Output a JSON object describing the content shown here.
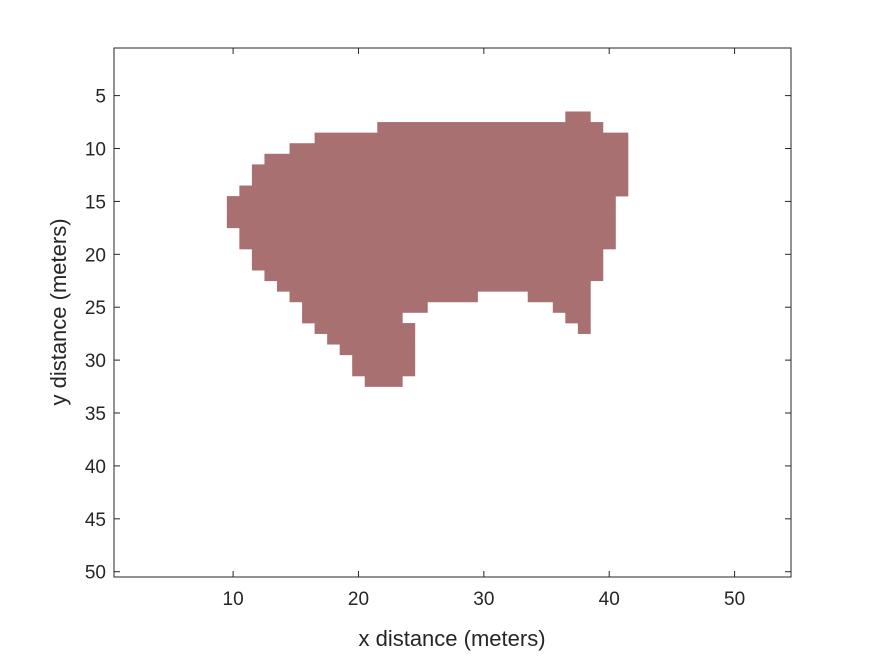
{
  "chart_data": {
    "type": "heatmap",
    "xlabel": "x distance (meters)",
    "ylabel": "y distance (meters)",
    "xlim": [
      0.5,
      54.5
    ],
    "ylim": [
      0.5,
      50.5
    ],
    "y_direction": "reversed",
    "xticks": [
      10,
      20,
      30,
      40,
      50
    ],
    "yticks": [
      5,
      10,
      15,
      20,
      25,
      30,
      35,
      40,
      45,
      50
    ],
    "grid": false,
    "legend": "none",
    "fill_color": "#a87070",
    "background_color": "#ffffff",
    "region_rows": [
      {
        "y": 7,
        "x_ranges": [
          [
            37,
            38
          ]
        ]
      },
      {
        "y": 8,
        "x_ranges": [
          [
            22,
            39
          ]
        ]
      },
      {
        "y": 9,
        "x_ranges": [
          [
            17,
            41
          ]
        ]
      },
      {
        "y": 10,
        "x_ranges": [
          [
            15,
            41
          ]
        ]
      },
      {
        "y": 11,
        "x_ranges": [
          [
            13,
            41
          ]
        ]
      },
      {
        "y": 12,
        "x_ranges": [
          [
            12,
            41
          ]
        ]
      },
      {
        "y": 13,
        "x_ranges": [
          [
            12,
            41
          ]
        ]
      },
      {
        "y": 14,
        "x_ranges": [
          [
            11,
            41
          ]
        ]
      },
      {
        "y": 15,
        "x_ranges": [
          [
            10,
            40
          ]
        ]
      },
      {
        "y": 16,
        "x_ranges": [
          [
            10,
            40
          ]
        ]
      },
      {
        "y": 17,
        "x_ranges": [
          [
            10,
            40
          ]
        ]
      },
      {
        "y": 18,
        "x_ranges": [
          [
            11,
            40
          ]
        ]
      },
      {
        "y": 19,
        "x_ranges": [
          [
            11,
            40
          ]
        ]
      },
      {
        "y": 20,
        "x_ranges": [
          [
            12,
            39
          ]
        ]
      },
      {
        "y": 21,
        "x_ranges": [
          [
            12,
            39
          ]
        ]
      },
      {
        "y": 22,
        "x_ranges": [
          [
            13,
            39
          ]
        ]
      },
      {
        "y": 23,
        "x_ranges": [
          [
            14,
            38
          ]
        ]
      },
      {
        "y": 24,
        "x_ranges": [
          [
            15,
            29
          ],
          [
            34,
            38
          ]
        ]
      },
      {
        "y": 25,
        "x_ranges": [
          [
            16,
            25
          ],
          [
            36,
            38
          ]
        ]
      },
      {
        "y": 26,
        "x_ranges": [
          [
            16,
            23
          ],
          [
            37,
            38
          ]
        ]
      },
      {
        "y": 27,
        "x_ranges": [
          [
            17,
            24
          ],
          [
            38,
            38
          ]
        ]
      },
      {
        "y": 28,
        "x_ranges": [
          [
            18,
            24
          ]
        ]
      },
      {
        "y": 29,
        "x_ranges": [
          [
            19,
            24
          ]
        ]
      },
      {
        "y": 30,
        "x_ranges": [
          [
            20,
            24
          ]
        ]
      },
      {
        "y": 31,
        "x_ranges": [
          [
            20,
            24
          ]
        ]
      },
      {
        "y": 32,
        "x_ranges": [
          [
            21,
            23
          ]
        ]
      }
    ]
  }
}
